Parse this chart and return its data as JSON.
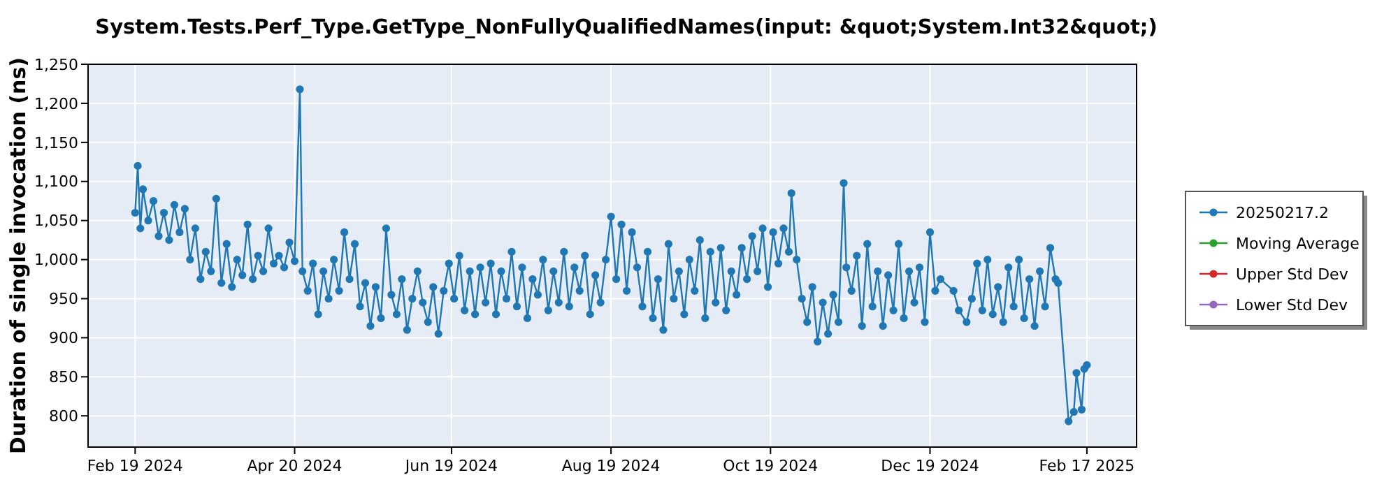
{
  "chart_data": {
    "type": "line",
    "title": "System.Tests.Perf_Type.GetType_NonFullyQualifiedNames(input: &quot;System.Int32&quot;)",
    "ylabel": "Duration of single invocation (ns)",
    "xlim": [
      "2024-02-01",
      "2025-03-08"
    ],
    "xticks": [
      {
        "value": "2024-02-19",
        "label": "Feb 19 2024"
      },
      {
        "value": "2024-04-20",
        "label": "Apr 20 2024"
      },
      {
        "value": "2024-06-19",
        "label": "Jun 19 2024"
      },
      {
        "value": "2024-08-19",
        "label": "Aug 19 2024"
      },
      {
        "value": "2024-10-19",
        "label": "Oct 19 2024"
      },
      {
        "value": "2024-12-19",
        "label": "Dec 19 2024"
      },
      {
        "value": "2025-02-17",
        "label": "Feb 17 2025"
      }
    ],
    "ylim": [
      760,
      1250
    ],
    "yticks": [
      800,
      850,
      900,
      950,
      {
        "value": 1000,
        "label": "1,000"
      },
      {
        "value": 1050,
        "label": "1,050"
      },
      {
        "value": 1100,
        "label": "1,100"
      },
      {
        "value": 1150,
        "label": "1,150"
      },
      {
        "value": 1200,
        "label": "1,200"
      },
      {
        "value": 1250,
        "label": "1,250"
      }
    ],
    "grid": true,
    "legend": "right",
    "marker": "circle",
    "line_style": "solid",
    "series": [
      {
        "name": "20250217.2",
        "color": "#1f77b4",
        "x": [
          "2024-02-19",
          "2024-02-20",
          "2024-02-21",
          "2024-02-22",
          "2024-02-24",
          "2024-02-26",
          "2024-02-28",
          "2024-03-01",
          "2024-03-03",
          "2024-03-05",
          "2024-03-07",
          "2024-03-09",
          "2024-03-11",
          "2024-03-13",
          "2024-03-15",
          "2024-03-17",
          "2024-03-19",
          "2024-03-21",
          "2024-03-23",
          "2024-03-25",
          "2024-03-27",
          "2024-03-29",
          "2024-03-31",
          "2024-04-02",
          "2024-04-04",
          "2024-04-06",
          "2024-04-08",
          "2024-04-10",
          "2024-04-12",
          "2024-04-14",
          "2024-04-16",
          "2024-04-18",
          "2024-04-20",
          "2024-04-22",
          "2024-04-23",
          "2024-04-25",
          "2024-04-27",
          "2024-04-29",
          "2024-05-01",
          "2024-05-03",
          "2024-05-05",
          "2024-05-07",
          "2024-05-09",
          "2024-05-11",
          "2024-05-13",
          "2024-05-15",
          "2024-05-17",
          "2024-05-19",
          "2024-05-21",
          "2024-05-23",
          "2024-05-25",
          "2024-05-27",
          "2024-05-29",
          "2024-05-31",
          "2024-06-02",
          "2024-06-04",
          "2024-06-06",
          "2024-06-08",
          "2024-06-10",
          "2024-06-12",
          "2024-06-14",
          "2024-06-16",
          "2024-06-18",
          "2024-06-20",
          "2024-06-22",
          "2024-06-24",
          "2024-06-26",
          "2024-06-28",
          "2024-06-30",
          "2024-07-02",
          "2024-07-04",
          "2024-07-06",
          "2024-07-08",
          "2024-07-10",
          "2024-07-12",
          "2024-07-14",
          "2024-07-16",
          "2024-07-18",
          "2024-07-20",
          "2024-07-22",
          "2024-07-24",
          "2024-07-26",
          "2024-07-28",
          "2024-07-30",
          "2024-08-01",
          "2024-08-03",
          "2024-08-05",
          "2024-08-07",
          "2024-08-09",
          "2024-08-11",
          "2024-08-13",
          "2024-08-15",
          "2024-08-17",
          "2024-08-19",
          "2024-08-21",
          "2024-08-23",
          "2024-08-25",
          "2024-08-27",
          "2024-08-29",
          "2024-08-31",
          "2024-09-02",
          "2024-09-04",
          "2024-09-06",
          "2024-09-08",
          "2024-09-10",
          "2024-09-12",
          "2024-09-14",
          "2024-09-16",
          "2024-09-18",
          "2024-09-20",
          "2024-09-22",
          "2024-09-24",
          "2024-09-26",
          "2024-09-28",
          "2024-09-30",
          "2024-10-02",
          "2024-10-04",
          "2024-10-06",
          "2024-10-08",
          "2024-10-10",
          "2024-10-12",
          "2024-10-14",
          "2024-10-16",
          "2024-10-18",
          "2024-10-20",
          "2024-10-22",
          "2024-10-24",
          "2024-10-26",
          "2024-10-27",
          "2024-10-29",
          "2024-10-31",
          "2024-11-02",
          "2024-11-04",
          "2024-11-06",
          "2024-11-08",
          "2024-11-10",
          "2024-11-12",
          "2024-11-14",
          "2024-11-16",
          "2024-11-17",
          "2024-11-19",
          "2024-11-21",
          "2024-11-23",
          "2024-11-25",
          "2024-11-27",
          "2024-11-29",
          "2024-12-01",
          "2024-12-03",
          "2024-12-05",
          "2024-12-07",
          "2024-12-09",
          "2024-12-11",
          "2024-12-13",
          "2024-12-15",
          "2024-12-17",
          "2024-12-19",
          "2024-12-21",
          "2024-12-23",
          "2024-12-28",
          "2024-12-30",
          "2025-01-02",
          "2025-01-04",
          "2025-01-06",
          "2025-01-08",
          "2025-01-10",
          "2025-01-12",
          "2025-01-14",
          "2025-01-16",
          "2025-01-18",
          "2025-01-20",
          "2025-01-22",
          "2025-01-24",
          "2025-01-26",
          "2025-01-28",
          "2025-01-30",
          "2025-02-01",
          "2025-02-03",
          "2025-02-05",
          "2025-02-06",
          "2025-02-10",
          "2025-02-12",
          "2025-02-13",
          "2025-02-15",
          "2025-02-16",
          "2025-02-17"
        ],
        "values": [
          1060,
          1120,
          1040,
          1090,
          1050,
          1075,
          1030,
          1060,
          1025,
          1070,
          1035,
          1065,
          1000,
          1040,
          975,
          1010,
          985,
          1078,
          970,
          1020,
          965,
          1000,
          980,
          1045,
          975,
          1005,
          985,
          1040,
          995,
          1005,
          990,
          1022,
          998,
          1218,
          985,
          960,
          995,
          930,
          985,
          950,
          1000,
          960,
          1035,
          975,
          1020,
          940,
          970,
          915,
          965,
          925,
          1040,
          955,
          930,
          975,
          910,
          950,
          985,
          945,
          920,
          965,
          905,
          960,
          995,
          950,
          1005,
          935,
          985,
          930,
          990,
          945,
          995,
          930,
          985,
          950,
          1010,
          940,
          990,
          925,
          975,
          955,
          1000,
          935,
          985,
          945,
          1010,
          940,
          990,
          960,
          1005,
          930,
          980,
          945,
          1000,
          1055,
          975,
          1045,
          960,
          1035,
          990,
          940,
          1010,
          925,
          975,
          910,
          1020,
          950,
          985,
          930,
          1000,
          960,
          1025,
          925,
          1010,
          945,
          1015,
          935,
          985,
          955,
          1015,
          975,
          1030,
          985,
          1040,
          965,
          1035,
          995,
          1040,
          1010,
          1085,
          1000,
          950,
          920,
          965,
          895,
          945,
          905,
          955,
          920,
          1098,
          990,
          960,
          1005,
          915,
          1020,
          940,
          985,
          915,
          980,
          935,
          1020,
          925,
          985,
          945,
          990,
          920,
          1035,
          960,
          975,
          960,
          935,
          920,
          950,
          995,
          935,
          1000,
          930,
          965,
          920,
          990,
          940,
          1000,
          925,
          975,
          915,
          985,
          940,
          1015,
          975,
          970,
          793,
          805,
          855,
          808,
          860,
          865
        ]
      },
      {
        "name": "Moving Average",
        "color": "#2ca02c"
      },
      {
        "name": "Upper Std Dev",
        "color": "#d62728"
      },
      {
        "name": "Lower Std Dev",
        "color": "#9467bd"
      }
    ]
  }
}
